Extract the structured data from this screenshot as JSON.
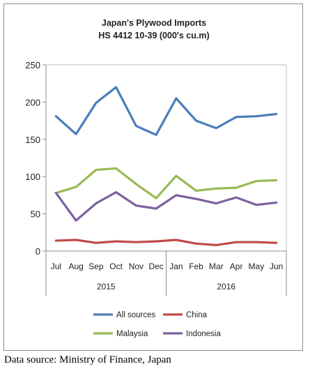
{
  "chart_data": {
    "type": "line",
    "title": "Japan's Plywood Imports",
    "subtitle": "HS 4412 10-39  (000's cu.m)",
    "categories": [
      "Jul",
      "Aug",
      "Sep",
      "Oct",
      "Nov",
      "Dec",
      "Jan",
      "Feb",
      "Mar",
      "Apr",
      "May",
      "Jun"
    ],
    "year_groups": [
      {
        "label": "2015",
        "count": 6
      },
      {
        "label": "2016",
        "count": 6
      }
    ],
    "ylim": [
      0,
      250
    ],
    "yticks": [
      0,
      50,
      100,
      150,
      200,
      250
    ],
    "grid": false,
    "legend_position": "bottom",
    "series": [
      {
        "name": "All sources",
        "color": "#4a7ebb",
        "values": [
          181,
          157,
          199,
          220,
          168,
          156,
          205,
          175,
          165,
          180,
          181,
          184
        ]
      },
      {
        "name": "China",
        "color": "#be4b48",
        "values": [
          14,
          15,
          11,
          13,
          12,
          13,
          15,
          10,
          8,
          12,
          12,
          11
        ]
      },
      {
        "name": "Malaysia",
        "color": "#98b954",
        "values": [
          78,
          86,
          109,
          111,
          90,
          71,
          101,
          81,
          84,
          85,
          94,
          95
        ]
      },
      {
        "name": "Indonesia",
        "color": "#7d60a0",
        "values": [
          78,
          41,
          64,
          79,
          61,
          57,
          75,
          70,
          64,
          72,
          62,
          65
        ]
      }
    ]
  },
  "footer": {
    "source": "Data source: Ministry of Finance, Japan"
  }
}
